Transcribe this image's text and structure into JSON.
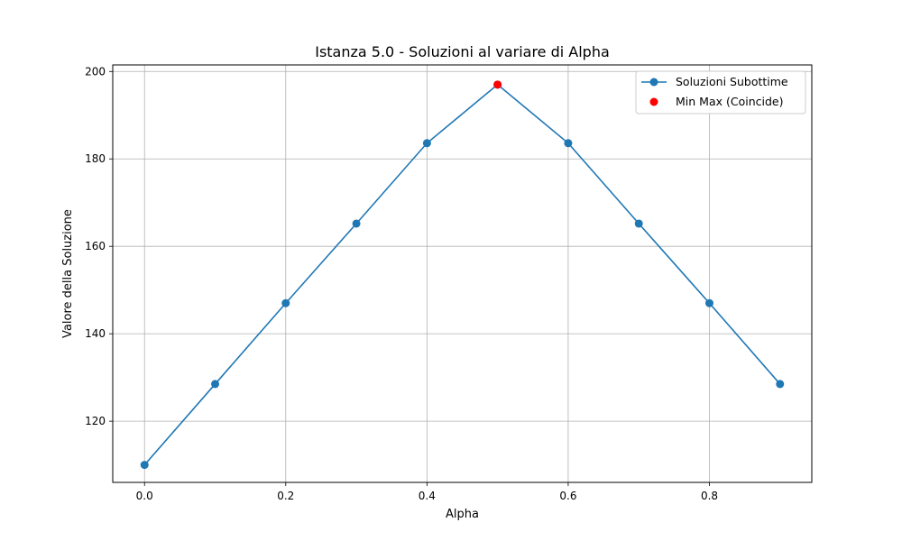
{
  "chart_data": {
    "type": "line",
    "title": "Istanza 5.0 - Soluzioni al variare di Alpha",
    "xlabel": "Alpha",
    "ylabel": "Valore della Soluzione",
    "xlim": [
      -0.045,
      0.945
    ],
    "ylim": [
      106,
      201.5
    ],
    "xticks": [
      0.0,
      0.2,
      0.4,
      0.6,
      0.8
    ],
    "xtick_labels": [
      "0.0",
      "0.2",
      "0.4",
      "0.6",
      "0.8"
    ],
    "yticks": [
      120,
      140,
      160,
      180,
      200
    ],
    "ytick_labels": [
      "120",
      "140",
      "160",
      "180",
      "200"
    ],
    "grid": true,
    "legend_position": "top-right",
    "series": [
      {
        "name": "Soluzioni Subottime",
        "color": "#1f77b4",
        "marker": "circle",
        "x": [
          0.0,
          0.1,
          0.2,
          0.3,
          0.4,
          0.5,
          0.6,
          0.7,
          0.8,
          0.9
        ],
        "y": [
          110.0,
          128.5,
          147.0,
          165.2,
          183.6,
          197.0,
          183.6,
          165.2,
          147.0,
          128.5
        ]
      },
      {
        "name": "Min Max (Coincide)",
        "color": "#ff0000",
        "marker": "circle",
        "style": "scatter",
        "x": [
          0.5
        ],
        "y": [
          197.0
        ]
      }
    ]
  }
}
